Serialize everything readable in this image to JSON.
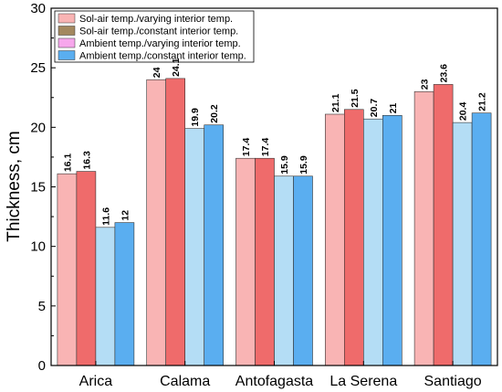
{
  "chart_data": {
    "type": "bar",
    "categories": [
      "Arica",
      "Calama",
      "Antofagasta",
      "La Serena",
      "Santiago"
    ],
    "series": [
      {
        "name": "Sol-air temp./varying interior temp.",
        "values": [
          16.1,
          24,
          17.4,
          21.1,
          23
        ],
        "color": "#f9b4b4",
        "legend_color": "#f9b4b4"
      },
      {
        "name": "Sol-air temp./constant interior temp.",
        "values": [
          16.3,
          24.1,
          17.4,
          21.5,
          23.6
        ],
        "color": "#ef6b6b",
        "legend_color": "#a3885f"
      },
      {
        "name": "Ambient temp./varying interior temp.",
        "values": [
          11.6,
          19.9,
          15.9,
          20.7,
          20.4
        ],
        "color": "#b4ddf5",
        "legend_color": "#f7a7ec"
      },
      {
        "name": "Ambient temp./constant interior temp.",
        "values": [
          12,
          20.2,
          15.9,
          21,
          21.2
        ],
        "color": "#5aaef0",
        "legend_color": "#5aaef0"
      }
    ],
    "data_labels": [
      [
        "16.1",
        "24",
        "17.4",
        "21.1",
        "23"
      ],
      [
        "16.3",
        "24.1",
        "17.4",
        "21.5",
        "23.6"
      ],
      [
        "11.6",
        "19.9",
        "15.9",
        "20.7",
        "20.4"
      ],
      [
        "12",
        "20.2",
        "15.9",
        "21",
        "21.2"
      ]
    ],
    "title": "",
    "xlabel": "",
    "ylabel": "Thickness, cm",
    "ylim": [
      0,
      30
    ],
    "yticks": [
      0,
      5,
      10,
      15,
      20,
      25,
      30
    ],
    "grid": false,
    "legend_position": "top-left"
  }
}
